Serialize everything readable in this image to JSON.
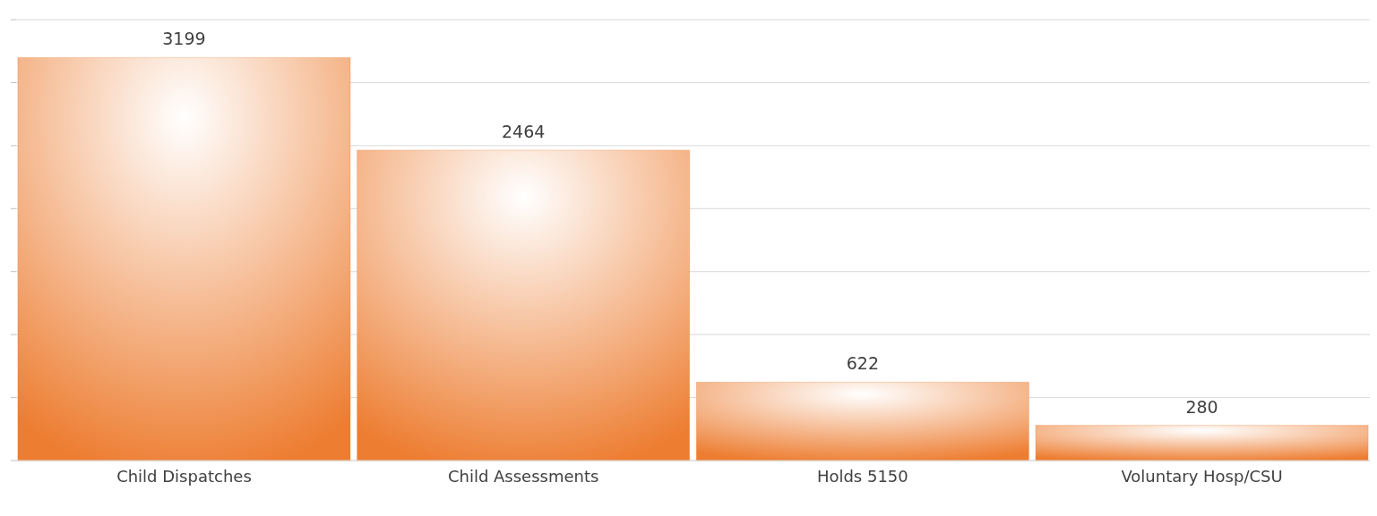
{
  "chart_data": {
    "type": "bar",
    "categories": [
      "Child Dispatches",
      "Child Assessments",
      "Holds 5150",
      "Voluntary Hosp/CSU"
    ],
    "values": [
      3199,
      2464,
      622,
      280
    ],
    "color": "#ed7d31",
    "data_labels": true,
    "ylim": [
      0,
      3500
    ],
    "yticks": [
      {
        "value": 0,
        "label": null
      },
      {
        "value": 500,
        "label": null
      },
      {
        "value": 1000,
        "label": null
      },
      {
        "value": 1500,
        "label": null
      },
      {
        "value": 2000,
        "label": null
      },
      {
        "value": 2500,
        "label": null
      },
      {
        "value": 3000,
        "label": null
      },
      {
        "value": 3500,
        "label": null
      }
    ],
    "grid": "y",
    "tick_labels": "x"
  }
}
